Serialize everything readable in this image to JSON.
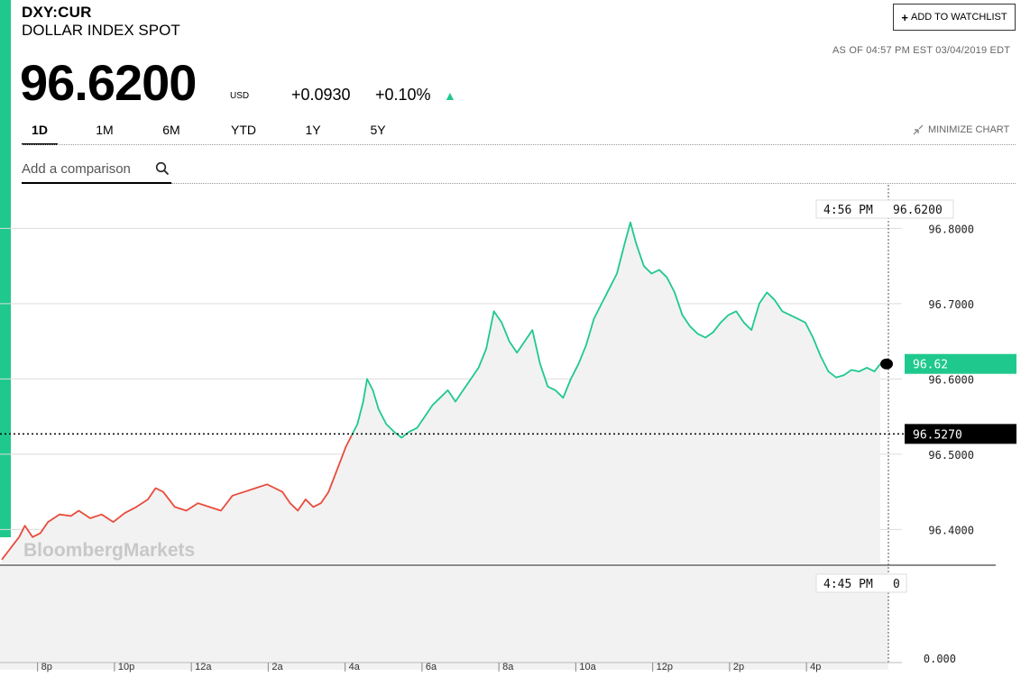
{
  "header": {
    "ticker": "DXY:CUR",
    "name": "DOLLAR INDEX SPOT",
    "price": "96.6200",
    "currency": "USD",
    "change": "+0.0930",
    "change_pct": "+0.10%",
    "direction": "up",
    "as_of": "AS OF 04:57 PM EST 03/04/2019 EDT",
    "watchlist_label": "ADD TO WATCHLIST",
    "minimize_label": "MINIMIZE CHART"
  },
  "tabs": [
    {
      "label": "1D",
      "active": true
    },
    {
      "label": "1M",
      "active": false
    },
    {
      "label": "6M",
      "active": false
    },
    {
      "label": "YTD",
      "active": false
    },
    {
      "label": "1Y",
      "active": false
    },
    {
      "label": "5Y",
      "active": false
    }
  ],
  "comparison": {
    "placeholder": "Add a comparison"
  },
  "colors": {
    "up": "#1fc98d",
    "down": "#e94b3c",
    "fill": "#f2f2f2"
  },
  "watermark": "BloombergMarkets",
  "chart_data": {
    "type": "line",
    "x_unit": "hours since 7p (local session time)",
    "x_tick_labels": [
      "8p",
      "10p",
      "12a",
      "2a",
      "4a",
      "6a",
      "8a",
      "10a",
      "12p",
      "2p",
      "4p"
    ],
    "x_tick_values": [
      1,
      3,
      5,
      7,
      9,
      11,
      13,
      15,
      17,
      19,
      21
    ],
    "y_ticks": [
      "96.8000",
      "96.7000",
      "96.6000",
      "96.5000",
      "96.4000"
    ],
    "ylim": [
      96.355,
      96.84
    ],
    "previous_close": 96.527,
    "previous_close_label": "96.5270",
    "last_label": "96.62",
    "hover_time": "4:56 PM",
    "hover_value": "96.6200",
    "volume_label_time": "4:45 PM",
    "volume_label_value": "0",
    "volume_axis_label": "0.000",
    "series": [
      {
        "values": [
          [
            0.0,
            96.36
          ],
          [
            0.15,
            96.37
          ],
          [
            0.3,
            96.38
          ],
          [
            0.45,
            96.39
          ],
          [
            0.6,
            96.405
          ],
          [
            0.8,
            96.39
          ],
          [
            1.0,
            96.395
          ],
          [
            1.2,
            96.41
          ],
          [
            1.5,
            96.42
          ],
          [
            1.8,
            96.418
          ],
          [
            2.0,
            96.425
          ],
          [
            2.3,
            96.415
          ],
          [
            2.6,
            96.42
          ],
          [
            2.9,
            96.41
          ],
          [
            3.2,
            96.422
          ],
          [
            3.5,
            96.43
          ],
          [
            3.8,
            96.44
          ],
          [
            4.0,
            96.455
          ],
          [
            4.2,
            96.45
          ],
          [
            4.5,
            96.43
          ],
          [
            4.8,
            96.425
          ],
          [
            5.1,
            96.435
          ],
          [
            5.4,
            96.43
          ],
          [
            5.7,
            96.425
          ],
          [
            6.0,
            96.445
          ],
          [
            6.3,
            96.45
          ],
          [
            6.6,
            96.455
          ],
          [
            6.9,
            96.46
          ],
          [
            7.1,
            96.455
          ],
          [
            7.3,
            96.45
          ],
          [
            7.5,
            96.435
          ],
          [
            7.7,
            96.425
          ],
          [
            7.9,
            96.44
          ],
          [
            8.1,
            96.43
          ],
          [
            8.3,
            96.435
          ],
          [
            8.5,
            96.45
          ],
          [
            8.65,
            96.47
          ],
          [
            8.8,
            96.49
          ],
          [
            8.95,
            96.51
          ],
          [
            9.1,
            96.525
          ]
        ]
      },
      {
        "values": [
          [
            9.1,
            96.525
          ],
          [
            9.25,
            96.54
          ],
          [
            9.4,
            96.57
          ],
          [
            9.5,
            96.6
          ],
          [
            9.65,
            96.585
          ],
          [
            9.8,
            96.56
          ],
          [
            10.0,
            96.54
          ],
          [
            10.2,
            96.53
          ],
          [
            10.4,
            96.522
          ],
          [
            10.6,
            96.53
          ],
          [
            10.8,
            96.535
          ],
          [
            11.0,
            96.55
          ],
          [
            11.2,
            96.565
          ],
          [
            11.4,
            96.575
          ],
          [
            11.6,
            96.585
          ],
          [
            11.8,
            96.57
          ],
          [
            12.0,
            96.585
          ],
          [
            12.2,
            96.6
          ],
          [
            12.4,
            96.615
          ],
          [
            12.6,
            96.64
          ],
          [
            12.8,
            96.69
          ],
          [
            13.0,
            96.675
          ],
          [
            13.2,
            96.65
          ],
          [
            13.4,
            96.635
          ],
          [
            13.6,
            96.65
          ],
          [
            13.8,
            96.665
          ],
          [
            14.0,
            96.62
          ],
          [
            14.2,
            96.59
          ],
          [
            14.4,
            96.585
          ],
          [
            14.6,
            96.575
          ],
          [
            14.8,
            96.6
          ],
          [
            15.0,
            96.62
          ],
          [
            15.2,
            96.645
          ],
          [
            15.4,
            96.68
          ],
          [
            15.6,
            96.7
          ],
          [
            15.8,
            96.72
          ],
          [
            16.0,
            96.74
          ],
          [
            16.2,
            96.78
          ],
          [
            16.35,
            96.808
          ],
          [
            16.5,
            96.78
          ],
          [
            16.7,
            96.75
          ],
          [
            16.9,
            96.74
          ],
          [
            17.1,
            96.745
          ],
          [
            17.3,
            96.735
          ],
          [
            17.5,
            96.715
          ],
          [
            17.7,
            96.685
          ],
          [
            17.9,
            96.67
          ],
          [
            18.1,
            96.66
          ],
          [
            18.3,
            96.655
          ],
          [
            18.5,
            96.662
          ],
          [
            18.7,
            96.675
          ],
          [
            18.9,
            96.685
          ],
          [
            19.1,
            96.69
          ],
          [
            19.3,
            96.675
          ],
          [
            19.5,
            96.665
          ],
          [
            19.7,
            96.7
          ],
          [
            19.9,
            96.715
          ],
          [
            20.1,
            96.705
          ],
          [
            20.3,
            96.69
          ],
          [
            20.5,
            96.685
          ],
          [
            20.7,
            96.68
          ],
          [
            20.9,
            96.675
          ],
          [
            21.1,
            96.655
          ],
          [
            21.3,
            96.63
          ],
          [
            21.5,
            96.61
          ],
          [
            21.7,
            96.602
          ],
          [
            21.9,
            96.605
          ],
          [
            22.1,
            96.612
          ],
          [
            22.3,
            96.61
          ],
          [
            22.5,
            96.615
          ],
          [
            22.7,
            96.61
          ],
          [
            22.85,
            96.62
          ]
        ]
      }
    ]
  }
}
